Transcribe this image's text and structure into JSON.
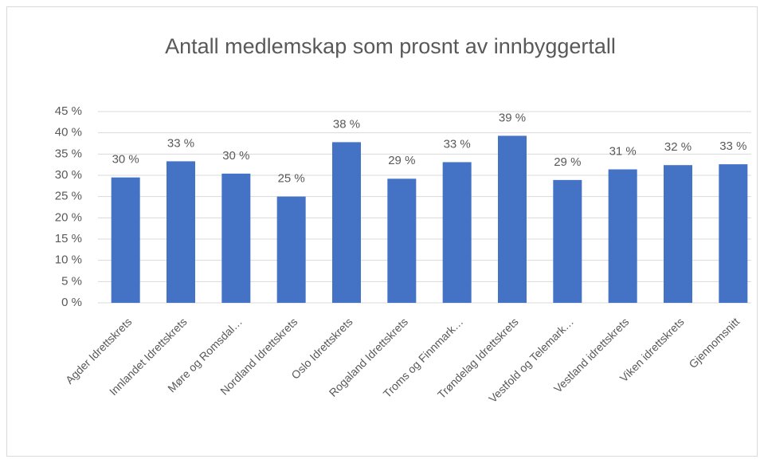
{
  "chart_data": {
    "type": "bar",
    "title": "Antall medlemskap som prosnt av innbyggertall",
    "categories": [
      "Agder Idrettskrets",
      "Innlandet Idrettskrets",
      "Møre og Romsdal…",
      "Nordland Idrettskrets",
      "Oslo Idrettskrets",
      "Rogaland Idrettskrets",
      "Troms og Finnmark…",
      "Trøndelag Idrettskrets",
      "Vestfold og Telemark…",
      "Vestland idrettskrets",
      "Viken idrettskrets",
      "Gjennomsnitt"
    ],
    "values": [
      29.5,
      33.3,
      30.4,
      25.0,
      37.8,
      29.2,
      33.1,
      39.3,
      28.9,
      31.4,
      32.4,
      32.6
    ],
    "value_labels": [
      "30 %",
      "33 %",
      "30 %",
      "25 %",
      "38 %",
      "29 %",
      "33 %",
      "39 %",
      "29 %",
      "31 %",
      "32 %",
      "33 %"
    ],
    "color": "#4472c4",
    "ylim": [
      0,
      45
    ],
    "yticks": [
      {
        "value": 0,
        "label": "0 %"
      },
      {
        "value": 5,
        "label": "5 %"
      },
      {
        "value": 10,
        "label": "10 %"
      },
      {
        "value": 15,
        "label": "15 %"
      },
      {
        "value": 20,
        "label": "20 %"
      },
      {
        "value": 25,
        "label": "25 %"
      },
      {
        "value": 30,
        "label": "30 %"
      },
      {
        "value": 35,
        "label": "35 %"
      },
      {
        "value": 40,
        "label": "40 %"
      },
      {
        "value": 45,
        "label": "45 %"
      }
    ],
    "grid": true
  }
}
